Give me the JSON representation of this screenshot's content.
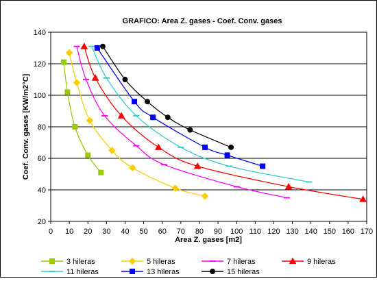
{
  "chart_data": {
    "type": "line",
    "title": "GRAFICO: Area Z. gases - Coef. Conv. gases",
    "xlabel": "Area Z. gases [m2]",
    "ylabel": "Coef. Conv. gases [KW/m2°C]",
    "xlim": [
      0,
      170
    ],
    "ylim": [
      20,
      140
    ],
    "xticks": [
      "0",
      "10",
      "20",
      "30",
      "40",
      "50",
      "60",
      "70",
      "80",
      "90",
      "100",
      "110",
      "120",
      "130",
      "140",
      "150",
      "160",
      "170"
    ],
    "yticks": [
      "20",
      "40",
      "60",
      "80",
      "100",
      "120",
      "140"
    ],
    "grid": "horizontal",
    "legend_position": "bottom",
    "series": [
      {
        "name": "3 hileras",
        "color": "#99cc00",
        "marker": "square",
        "x": [
          7,
          9,
          13,
          20,
          27
        ],
        "y": [
          121,
          102,
          80,
          62,
          51
        ]
      },
      {
        "name": "5 hileras",
        "color": "#ffcc00",
        "marker": "diamond",
        "x": [
          10,
          14,
          21,
          33,
          44,
          67,
          83
        ],
        "y": [
          127,
          108,
          84,
          65,
          54,
          41,
          36
        ]
      },
      {
        "name": "7 hileras",
        "color": "#ff00ff",
        "marker": "dash",
        "x": [
          14,
          19,
          29,
          46,
          61,
          100,
          127
        ],
        "y": [
          131,
          110,
          87,
          68,
          56,
          42,
          35
        ]
      },
      {
        "name": "9 hileras",
        "color": "#ff0000",
        "marker": "triangle",
        "x": [
          18,
          24,
          38,
          58,
          79,
          128,
          168
        ],
        "y": [
          131,
          111,
          87,
          67,
          55,
          42,
          34
        ]
      },
      {
        "name": "11 hileras",
        "color": "#33cccc",
        "marker": "dash",
        "x": [
          22,
          30,
          46,
          70,
          96,
          139
        ],
        "y": [
          131,
          111,
          87,
          67,
          55,
          45
        ]
      },
      {
        "name": "13 hileras",
        "color": "#0000ff",
        "marker": "square",
        "x": [
          25,
          45,
          55,
          83,
          95,
          114
        ],
        "y": [
          130,
          96,
          86,
          67,
          62,
          55
        ]
      },
      {
        "name": "15 hileras",
        "color": "#000000",
        "marker": "circle",
        "x": [
          28,
          40,
          52,
          63,
          75,
          97
        ],
        "y": [
          131,
          110,
          96,
          86,
          78,
          67
        ]
      }
    ]
  }
}
